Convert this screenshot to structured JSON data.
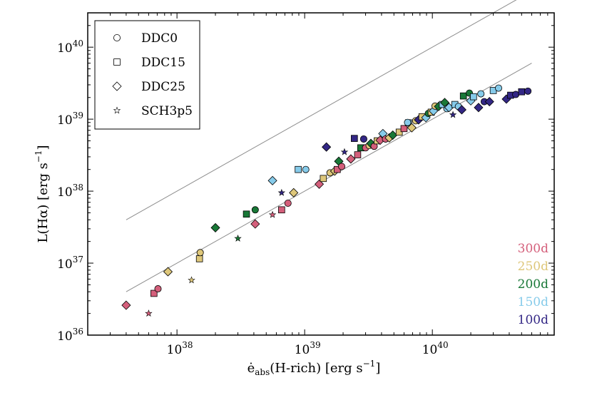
{
  "chart_data": {
    "type": "scatter",
    "title": "",
    "xlabel": {
      "prefix": "ė",
      "sub": "abs",
      "suffix": "(H-rich) [erg s",
      "sup": "−1",
      "close": "]"
    },
    "ylabel": {
      "prefix": "L(Hα) [erg s",
      "sup": "−1",
      "close": "]"
    },
    "xscale": "log",
    "yscale": "log",
    "xlim": [
      2e+37,
      9e+40
    ],
    "ylim": [
      1e+36,
      3e+40
    ],
    "xticks": [
      {
        "value": 1e+38,
        "base": "10",
        "exp": "38"
      },
      {
        "value": 1e+39,
        "base": "10",
        "exp": "39"
      },
      {
        "value": 1e+40,
        "base": "10",
        "exp": "40"
      }
    ],
    "yticks": [
      {
        "value": 1e+36,
        "base": "10",
        "exp": "36"
      },
      {
        "value": 1e+37,
        "base": "10",
        "exp": "37"
      },
      {
        "value": 1e+38,
        "base": "10",
        "exp": "38"
      },
      {
        "value": 1e+39,
        "base": "10",
        "exp": "39"
      },
      {
        "value": 1e+40,
        "base": "10",
        "exp": "40"
      }
    ],
    "reference_lines": [
      {
        "name": "upper",
        "x": [
          4e+37,
          6e+40
        ],
        "y": [
          4e+37,
          6e+40
        ],
        "color": "#8c8c8c"
      },
      {
        "name": "lower",
        "x": [
          4e+37,
          6e+40
        ],
        "y": [
          4e+36,
          6e+39
        ],
        "color": "#8c8c8c"
      }
    ],
    "legend": {
      "position": "top-left",
      "entries": [
        {
          "marker": "circle",
          "label": "DDC0"
        },
        {
          "marker": "square",
          "label": "DDC15"
        },
        {
          "marker": "diamond",
          "label": "DDC25"
        },
        {
          "marker": "star",
          "label": "SCH3p5"
        }
      ]
    },
    "epoch_legend": {
      "position": "bottom-right",
      "entries": [
        {
          "label": "300d",
          "color": "#d45f7b"
        },
        {
          "label": "250d",
          "color": "#dec77a"
        },
        {
          "label": "200d",
          "color": "#197837"
        },
        {
          "label": "150d",
          "color": "#86cbea"
        },
        {
          "label": "100d",
          "color": "#332785"
        }
      ]
    },
    "colors": {
      "300d": "#d45f7b",
      "250d": "#dec77a",
      "200d": "#197837",
      "150d": "#86cbea",
      "100d": "#332785",
      "line": "#8c8c8c",
      "axis": "#000000"
    },
    "points": [
      {
        "model": "DDC25",
        "epoch": "300d",
        "x": 4e+37,
        "y": 2.6e+36
      },
      {
        "model": "SCH3p5",
        "epoch": "300d",
        "x": 6e+37,
        "y": 2e+36
      },
      {
        "model": "DDC15",
        "epoch": "300d",
        "x": 6.6e+37,
        "y": 3.8e+36
      },
      {
        "model": "DDC0",
        "epoch": "300d",
        "x": 7.1e+37,
        "y": 4.4e+36
      },
      {
        "model": "DDC25",
        "epoch": "250d",
        "x": 8.5e+37,
        "y": 7.6e+36
      },
      {
        "model": "SCH3p5",
        "epoch": "250d",
        "x": 1.3e+38,
        "y": 5.8e+36
      },
      {
        "model": "DDC15",
        "epoch": "250d",
        "x": 1.5e+38,
        "y": 1.15e+37
      },
      {
        "model": "DDC0",
        "epoch": "250d",
        "x": 1.52e+38,
        "y": 1.4e+37
      },
      {
        "model": "DDC25",
        "epoch": "200d",
        "x": 2e+38,
        "y": 3.1e+37
      },
      {
        "model": "SCH3p5",
        "epoch": "200d",
        "x": 3e+38,
        "y": 2.2e+37
      },
      {
        "model": "DDC15",
        "epoch": "200d",
        "x": 3.5e+38,
        "y": 4.8e+37
      },
      {
        "model": "DDC0",
        "epoch": "200d",
        "x": 4.1e+38,
        "y": 5.5e+37
      },
      {
        "model": "DDC25",
        "epoch": "300d",
        "x": 4.1e+38,
        "y": 3.5e+37
      },
      {
        "model": "SCH3p5",
        "epoch": "300d",
        "x": 5.6e+38,
        "y": 4.7e+37
      },
      {
        "model": "DDC25",
        "epoch": "150d",
        "x": 5.6e+38,
        "y": 1.4e+38
      },
      {
        "model": "SCH3p5",
        "epoch": "100d",
        "x": 6.6e+38,
        "y": 9.5e+37
      },
      {
        "model": "DDC15",
        "epoch": "300d",
        "x": 6.6e+38,
        "y": 5.5e+37
      },
      {
        "model": "DDC0",
        "epoch": "300d",
        "x": 7.4e+38,
        "y": 6.8e+37
      },
      {
        "model": "DDC25",
        "epoch": "250d",
        "x": 8.2e+38,
        "y": 9.5e+37
      },
      {
        "model": "DDC15",
        "epoch": "150d",
        "x": 8.9e+38,
        "y": 2e+38
      },
      {
        "model": "DDC0",
        "epoch": "150d",
        "x": 1.02e+39,
        "y": 2e+38
      },
      {
        "model": "DDC25",
        "epoch": "300d",
        "x": 1.3e+39,
        "y": 1.25e+38
      },
      {
        "model": "DDC15",
        "epoch": "250d",
        "x": 1.4e+39,
        "y": 1.5e+38
      },
      {
        "model": "DDC25",
        "epoch": "100d",
        "x": 1.48e+39,
        "y": 4.1e+38
      },
      {
        "model": "DDC0",
        "epoch": "250d",
        "x": 1.58e+39,
        "y": 1.8e+38
      },
      {
        "model": "DDC25",
        "epoch": "250d",
        "x": 1.72e+39,
        "y": 1.9e+38
      },
      {
        "model": "DDC15",
        "epoch": "300d",
        "x": 1.8e+39,
        "y": 2e+38
      },
      {
        "model": "DDC25",
        "epoch": "200d",
        "x": 1.85e+39,
        "y": 2.6e+38
      },
      {
        "model": "DDC0",
        "epoch": "300d",
        "x": 1.95e+39,
        "y": 2.2e+38
      },
      {
        "model": "SCH3p5",
        "epoch": "100d",
        "x": 2.05e+39,
        "y": 3.5e+38
      },
      {
        "model": "DDC25",
        "epoch": "300d",
        "x": 2.3e+39,
        "y": 2.8e+38
      },
      {
        "model": "DDC15",
        "epoch": "100d",
        "x": 2.45e+39,
        "y": 5.4e+38
      },
      {
        "model": "DDC15",
        "epoch": "300d",
        "x": 2.6e+39,
        "y": 3.2e+38
      },
      {
        "model": "DDC15",
        "epoch": "200d",
        "x": 2.75e+39,
        "y": 4e+38
      },
      {
        "model": "DDC0",
        "epoch": "100d",
        "x": 2.9e+39,
        "y": 5.3e+38
      },
      {
        "model": "DDC0",
        "epoch": "300d",
        "x": 3e+39,
        "y": 4e+38
      },
      {
        "model": "DDC0",
        "epoch": "250d",
        "x": 3.2e+39,
        "y": 4.3e+38
      },
      {
        "model": "DDC25",
        "epoch": "200d",
        "x": 3.3e+39,
        "y": 4.6e+38
      },
      {
        "model": "DDC0",
        "epoch": "300d",
        "x": 3.5e+39,
        "y": 4.2e+38
      },
      {
        "model": "DDC15",
        "epoch": "250d",
        "x": 3.7e+39,
        "y": 5e+38
      },
      {
        "model": "DDC25",
        "epoch": "300d",
        "x": 3.9e+39,
        "y": 5.1e+38
      },
      {
        "model": "DDC25",
        "epoch": "150d",
        "x": 4.1e+39,
        "y": 6.3e+38
      },
      {
        "model": "DDC0",
        "epoch": "300d",
        "x": 4.3e+39,
        "y": 5.3e+38
      },
      {
        "model": "DDC25",
        "epoch": "250d",
        "x": 4.6e+39,
        "y": 5.5e+38
      },
      {
        "model": "DDC25",
        "epoch": "200d",
        "x": 4.9e+39,
        "y": 6e+38
      },
      {
        "model": "DDC15",
        "epoch": "250d",
        "x": 5.5e+39,
        "y": 6.6e+38
      },
      {
        "model": "DDC15",
        "epoch": "300d",
        "x": 6e+39,
        "y": 7.4e+38
      },
      {
        "model": "DDC15",
        "epoch": "150d",
        "x": 6.5e+39,
        "y": 8.9e+38
      },
      {
        "model": "DDC0",
        "epoch": "150d",
        "x": 6.4e+39,
        "y": 9e+38
      },
      {
        "model": "DDC25",
        "epoch": "250d",
        "x": 6.9e+39,
        "y": 7.6e+38
      },
      {
        "model": "DDC0",
        "epoch": "250d",
        "x": 7.4e+39,
        "y": 9.5e+38
      },
      {
        "model": "DDC25",
        "epoch": "100d",
        "x": 7.8e+39,
        "y": 9.8e+38
      },
      {
        "model": "DDC15",
        "epoch": "250d",
        "x": 8.3e+39,
        "y": 1.08e+39
      },
      {
        "model": "DDC25",
        "epoch": "150d",
        "x": 8.9e+39,
        "y": 1.05e+39
      },
      {
        "model": "DDC0",
        "epoch": "200d",
        "x": 9.3e+39,
        "y": 1.2e+39
      },
      {
        "model": "DDC15",
        "epoch": "250d",
        "x": 9.8e+39,
        "y": 1.25e+39
      },
      {
        "model": "DDC25",
        "epoch": "150d",
        "x": 1.02e+40,
        "y": 1.3e+39
      },
      {
        "model": "DDC0",
        "epoch": "250d",
        "x": 1.05e+40,
        "y": 1.52e+39
      },
      {
        "model": "DDC25",
        "epoch": "200d",
        "x": 1.12e+40,
        "y": 1.5e+39
      },
      {
        "model": "DDC15",
        "epoch": "150d",
        "x": 1.2e+40,
        "y": 1.6e+39
      },
      {
        "model": "DDC25",
        "epoch": "200d",
        "x": 1.25e+40,
        "y": 1.7e+39
      },
      {
        "model": "DDC0",
        "epoch": "150d",
        "x": 1.3e+40,
        "y": 1.4e+39
      },
      {
        "model": "SCH3p5",
        "epoch": "100d",
        "x": 1.45e+40,
        "y": 1.15e+39
      },
      {
        "model": "DDC25",
        "epoch": "150d",
        "x": 1.35e+40,
        "y": 1.45e+39
      },
      {
        "model": "DDC15",
        "epoch": "150d",
        "x": 1.5e+40,
        "y": 1.6e+39
      },
      {
        "model": "DDC0",
        "epoch": "150d",
        "x": 1.6e+40,
        "y": 1.5e+39
      },
      {
        "model": "DDC25",
        "epoch": "100d",
        "x": 1.7e+40,
        "y": 1.35e+39
      },
      {
        "model": "DDC15",
        "epoch": "200d",
        "x": 1.75e+40,
        "y": 2.1e+39
      },
      {
        "model": "DDC0",
        "epoch": "200d",
        "x": 1.95e+40,
        "y": 2.3e+39
      },
      {
        "model": "DDC25",
        "epoch": "150d",
        "x": 2e+40,
        "y": 1.8e+39
      },
      {
        "model": "DDC15",
        "epoch": "150d",
        "x": 2.1e+40,
        "y": 2.05e+39
      },
      {
        "model": "DDC25",
        "epoch": "100d",
        "x": 2.3e+40,
        "y": 1.45e+39
      },
      {
        "model": "DDC0",
        "epoch": "150d",
        "x": 2.4e+40,
        "y": 2.25e+39
      },
      {
        "model": "DDC0",
        "epoch": "100d",
        "x": 2.55e+40,
        "y": 1.75e+39
      },
      {
        "model": "DDC25",
        "epoch": "100d",
        "x": 2.8e+40,
        "y": 1.75e+39
      },
      {
        "model": "DDC15",
        "epoch": "150d",
        "x": 3e+40,
        "y": 2.5e+39
      },
      {
        "model": "DDC0",
        "epoch": "150d",
        "x": 3.3e+40,
        "y": 2.7e+39
      },
      {
        "model": "DDC25",
        "epoch": "100d",
        "x": 3.8e+40,
        "y": 1.9e+39
      },
      {
        "model": "DDC15",
        "epoch": "100d",
        "x": 4.1e+40,
        "y": 2.15e+39
      },
      {
        "model": "DDC0",
        "epoch": "100d",
        "x": 4.5e+40,
        "y": 2.2e+39
      },
      {
        "model": "DDC15",
        "epoch": "100d",
        "x": 5e+40,
        "y": 2.4e+39
      },
      {
        "model": "DDC0",
        "epoch": "100d",
        "x": 5.6e+40,
        "y": 2.45e+39
      }
    ]
  }
}
